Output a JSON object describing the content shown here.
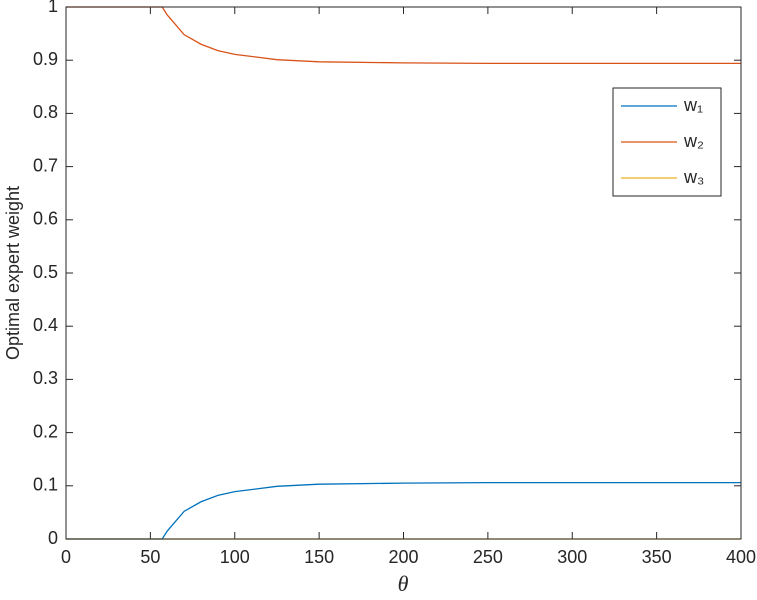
{
  "chart_data": {
    "type": "line",
    "xlabel": "θ",
    "ylabel": "Optimal expert weight",
    "x": [
      0,
      57,
      60,
      70,
      80,
      90,
      100,
      125,
      150,
      200,
      250,
      300,
      400
    ],
    "series": [
      {
        "name": "w₁",
        "color": "#0072bd",
        "values": [
          0,
          0,
          0.015,
          0.052,
          0.07,
          0.082,
          0.089,
          0.099,
          0.103,
          0.105,
          0.106,
          0.106,
          0.106
        ]
      },
      {
        "name": "w₂",
        "color": "#d95319",
        "values": [
          1,
          1,
          0.985,
          0.948,
          0.93,
          0.918,
          0.911,
          0.901,
          0.897,
          0.895,
          0.894,
          0.894,
          0.894
        ]
      },
      {
        "name": "w₃",
        "color": "#edb120",
        "values": [
          0,
          0,
          0,
          0,
          0,
          0,
          0,
          0,
          0,
          0,
          0,
          0,
          0
        ]
      }
    ],
    "xlim": [
      0,
      400
    ],
    "xticks": [
      0,
      50,
      100,
      150,
      200,
      250,
      300,
      350,
      400
    ],
    "ylim": [
      0,
      1
    ],
    "yticks": [
      0,
      0.1,
      0.2,
      0.3,
      0.4,
      0.5,
      0.6,
      0.7,
      0.8,
      0.9,
      1
    ],
    "grid": false,
    "legend": "northeast"
  }
}
